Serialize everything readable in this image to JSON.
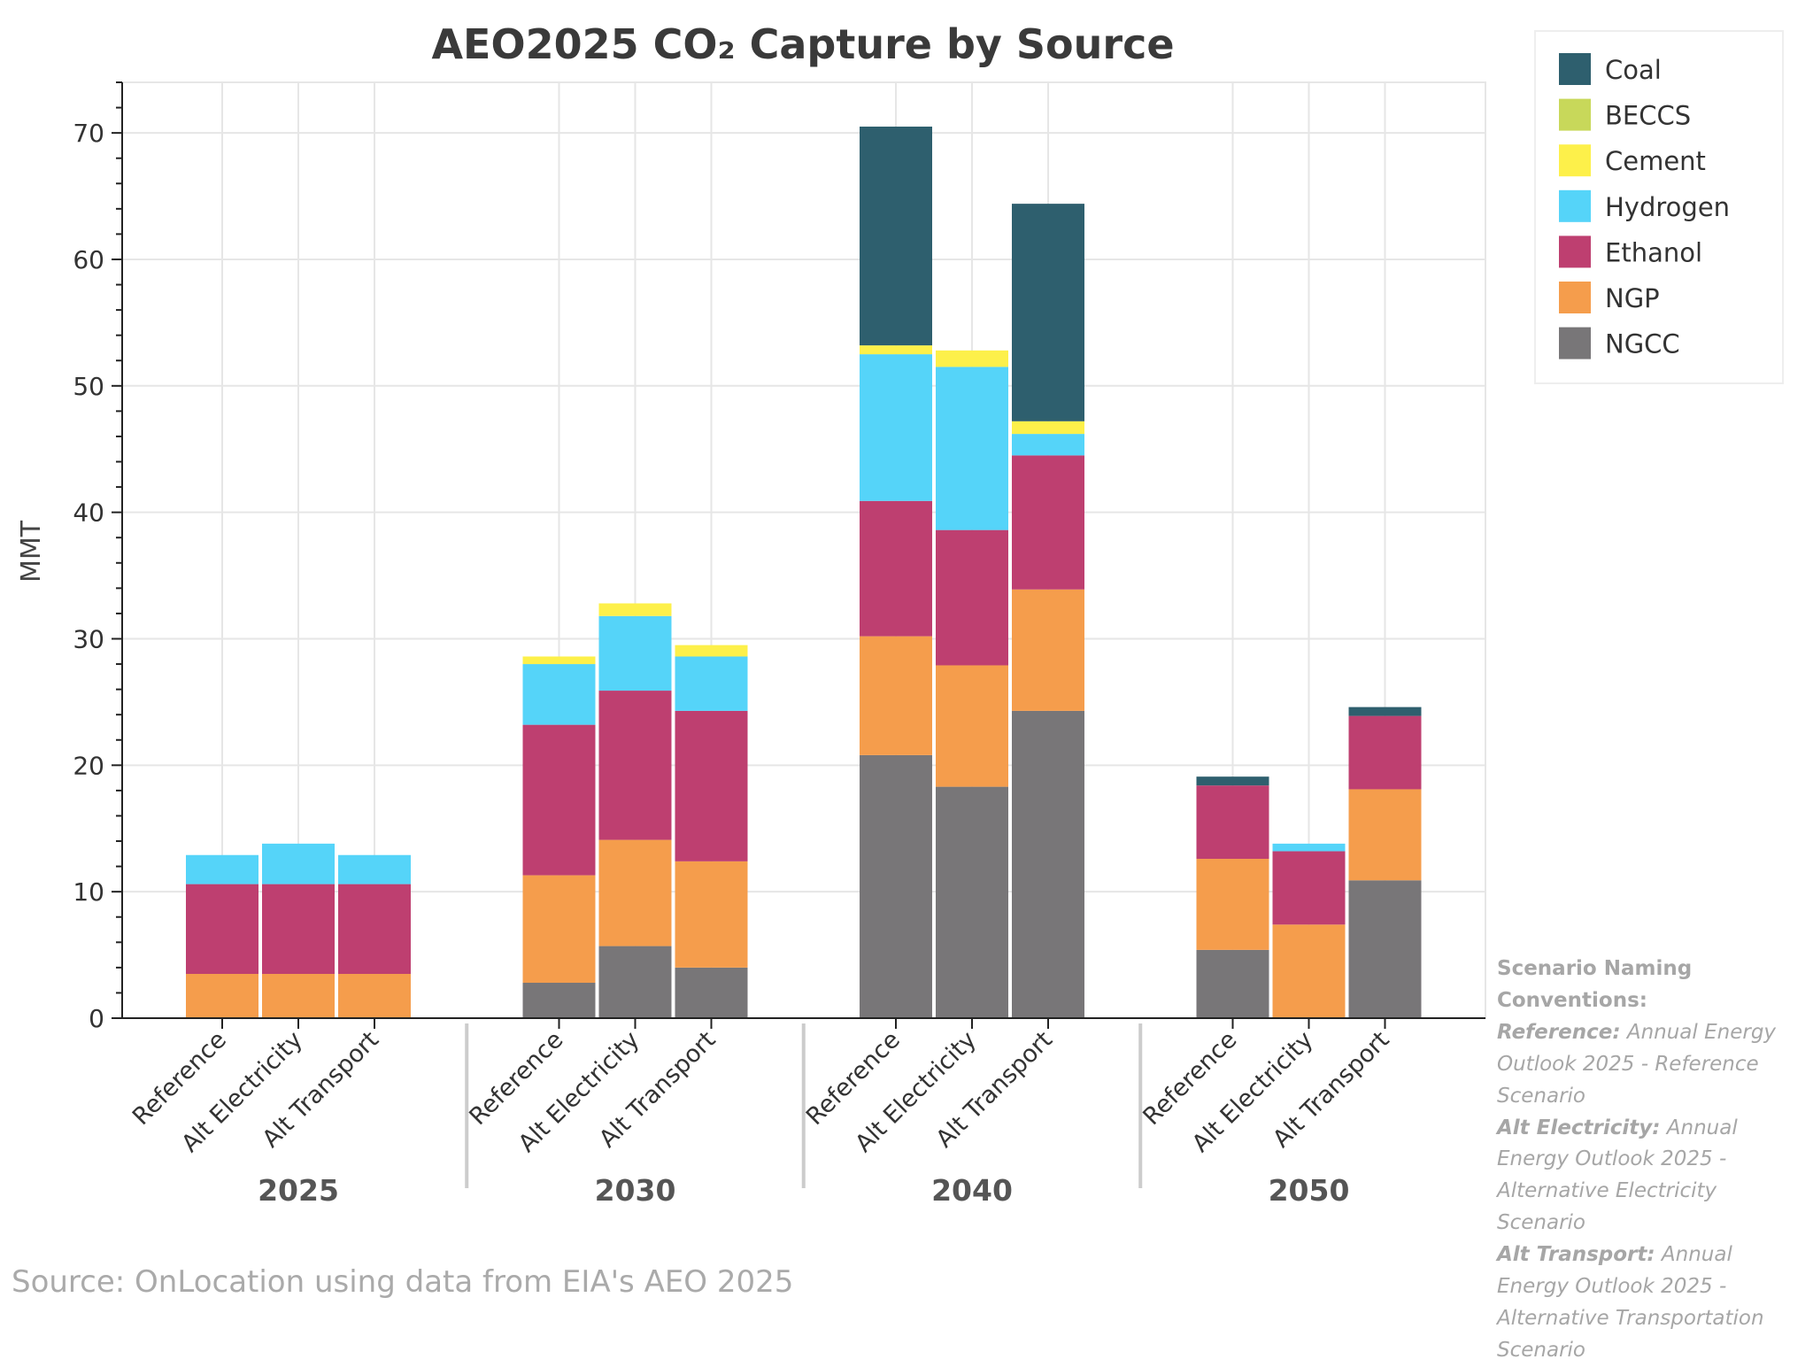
{
  "chart_data": {
    "type": "bar",
    "stacked": true,
    "title": "AEO2025 CO₂ Capture by Source",
    "ylabel": "MMT",
    "xlabel": "",
    "ylim": [
      0,
      74
    ],
    "yticks": [
      0,
      10,
      20,
      30,
      40,
      50,
      60,
      70
    ],
    "grid": true,
    "legend_position": "top-right",
    "groups": [
      "2025",
      "2030",
      "2040",
      "2050"
    ],
    "scenarios": [
      "Reference",
      "Alt Electricity",
      "Alt Transport"
    ],
    "series": [
      {
        "name": "NGCC",
        "color": "#787678",
        "values": [
          [
            0,
            0,
            0
          ],
          [
            2.8,
            5.7,
            4.0
          ],
          [
            20.8,
            18.3,
            24.3
          ],
          [
            5.4,
            0,
            10.9
          ]
        ]
      },
      {
        "name": "NGP",
        "color": "#f59d4c",
        "values": [
          [
            3.5,
            3.5,
            3.5
          ],
          [
            8.5,
            8.4,
            8.4
          ],
          [
            9.4,
            9.6,
            9.6
          ],
          [
            7.2,
            7.4,
            7.2
          ]
        ]
      },
      {
        "name": "Ethanol",
        "color": "#be3f70",
        "values": [
          [
            7.1,
            7.1,
            7.1
          ],
          [
            11.9,
            11.8,
            11.9
          ],
          [
            10.7,
            10.7,
            10.6
          ],
          [
            5.8,
            5.8,
            5.8
          ]
        ]
      },
      {
        "name": "Hydrogen",
        "color": "#55d4f9",
        "values": [
          [
            2.3,
            3.2,
            2.3
          ],
          [
            4.8,
            5.9,
            4.3
          ],
          [
            11.6,
            12.9,
            1.7
          ],
          [
            0,
            0.6,
            0
          ]
        ]
      },
      {
        "name": "Cement",
        "color": "#fdf04a",
        "values": [
          [
            0,
            0,
            0
          ],
          [
            0.6,
            1.0,
            0.9
          ],
          [
            0.7,
            1.3,
            1.0
          ],
          [
            0,
            0,
            0
          ]
        ]
      },
      {
        "name": "BECCS",
        "color": "#c8d85a",
        "values": [
          [
            0,
            0,
            0
          ],
          [
            0,
            0,
            0
          ],
          [
            0,
            0,
            0
          ],
          [
            0,
            0,
            0
          ]
        ]
      },
      {
        "name": "Coal",
        "color": "#2e5f6e",
        "values": [
          [
            0,
            0,
            0
          ],
          [
            0,
            0,
            0
          ],
          [
            17.3,
            0,
            17.2
          ],
          [
            0.7,
            0,
            0.7
          ]
        ]
      }
    ],
    "legend_order": [
      "Coal",
      "BECCS",
      "Cement",
      "Hydrogen",
      "Ethanol",
      "NGP",
      "NGCC"
    ]
  },
  "notes": {
    "heading": "Scenario Naming Conventions:",
    "items": [
      {
        "term": "Reference:",
        "desc": "Annual Energy Outlook 2025 - Reference Scenario"
      },
      {
        "term": "Alt Electricity:",
        "desc": "Annual Energy Outlook 2025 - Alternative Electricity Scenario"
      },
      {
        "term": "Alt Transport:",
        "desc": "Annual Energy Outlook 2025 - Alternative Transportation Scenario"
      }
    ]
  },
  "source": "Source: OnLocation using data from EIA's AEO 2025"
}
